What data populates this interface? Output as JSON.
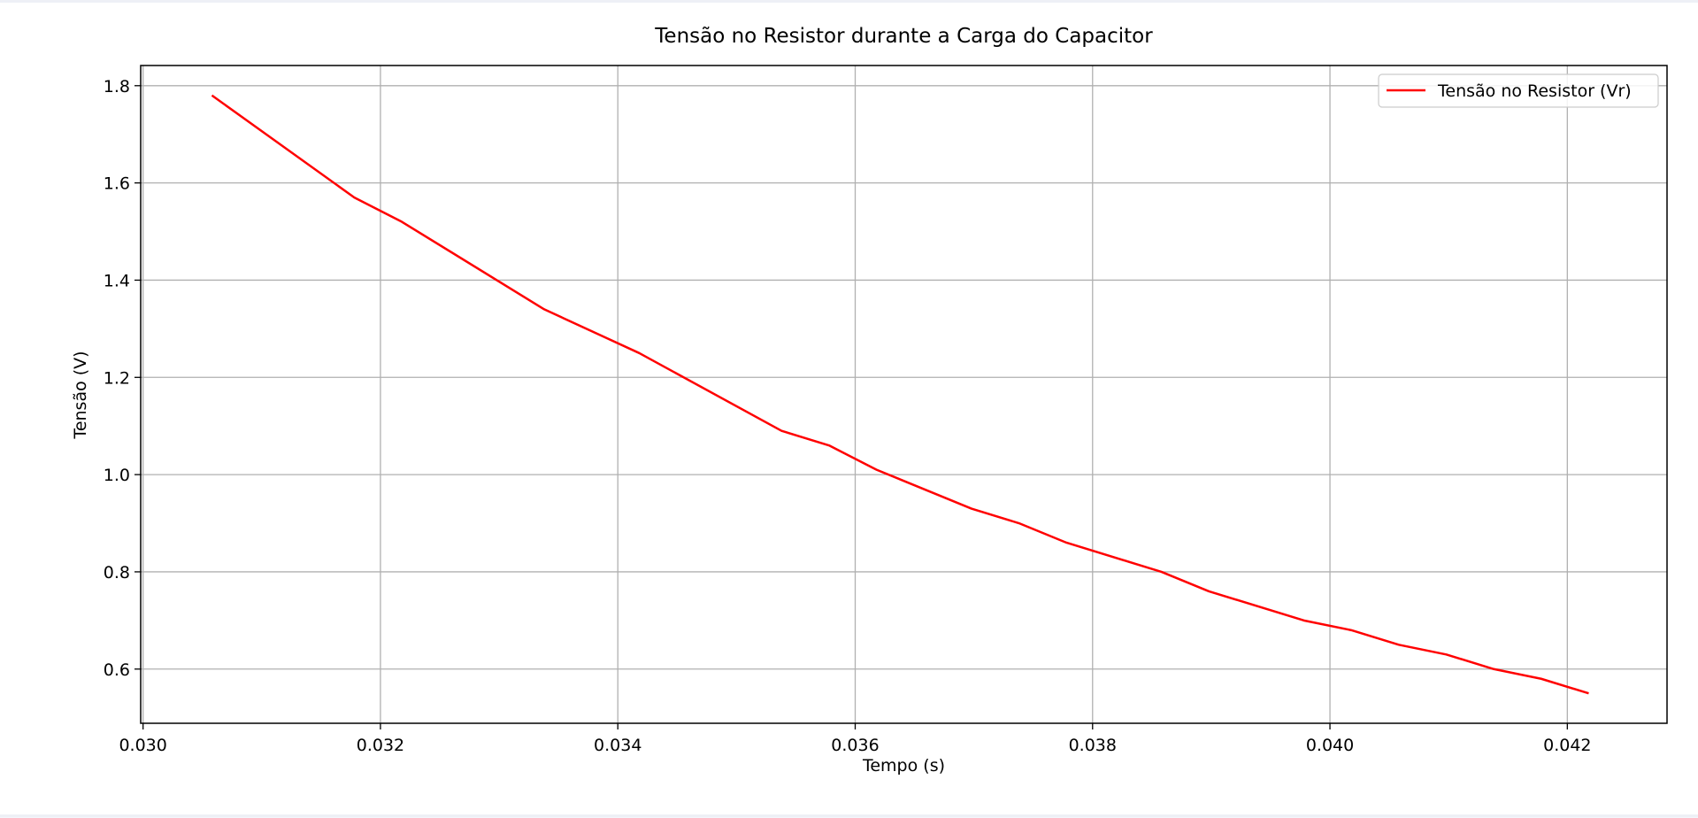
{
  "chart_data": {
    "type": "line",
    "title": "Tensão no Resistor durante a Carga do Capacitor",
    "xlabel": "Tempo (s)",
    "ylabel": "Tensão (V)",
    "xlim": [
      0.02998,
      0.04284
    ],
    "ylim": [
      0.4885,
      1.8415
    ],
    "grid": true,
    "legend_position": "top-right",
    "x_ticks": [
      0.03,
      0.032,
      0.034,
      0.036,
      0.038,
      0.04,
      0.042
    ],
    "x_tick_labels": [
      "0.030",
      "0.032",
      "0.034",
      "0.036",
      "0.038",
      "0.040",
      "0.042"
    ],
    "y_ticks": [
      0.6,
      0.8,
      1.0,
      1.2,
      1.4,
      1.6,
      1.8
    ],
    "y_tick_labels": [
      "0.6",
      "0.8",
      "1.0",
      "1.2",
      "1.4",
      "1.6",
      "1.8"
    ],
    "series": [
      {
        "name": "Tensão no Resistor (Vr)",
        "color": "#ff0000",
        "x": [
          0.03058,
          0.03178,
          0.03218,
          0.03338,
          0.03418,
          0.03538,
          0.03578,
          0.03618,
          0.03698,
          0.03738,
          0.03778,
          0.03858,
          0.03898,
          0.03978,
          0.04018,
          0.04058,
          0.04098,
          0.04138,
          0.04178,
          0.04218
        ],
        "y": [
          1.78,
          1.57,
          1.52,
          1.34,
          1.25,
          1.09,
          1.06,
          1.01,
          0.93,
          0.9,
          0.86,
          0.8,
          0.76,
          0.7,
          0.68,
          0.65,
          0.63,
          0.6,
          0.58,
          0.55
        ]
      }
    ]
  }
}
